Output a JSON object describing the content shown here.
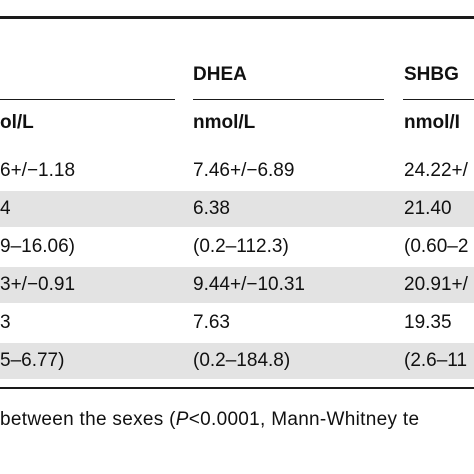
{
  "table": {
    "groups": [
      {
        "id": "c1",
        "label": ""
      },
      {
        "id": "c2",
        "label": "DHEA"
      },
      {
        "id": "c3",
        "label": "SHBG"
      }
    ],
    "units": [
      "ol/L",
      "nmol/L",
      "nmol/I"
    ],
    "rows": [
      {
        "cells": [
          "6+/−1.18",
          "7.46+/−6.89",
          "24.22+/"
        ],
        "shaded": false
      },
      {
        "cells": [
          "4",
          "6.38",
          "21.40"
        ],
        "shaded": true
      },
      {
        "cells": [
          "9–16.06)",
          "(0.2–112.3)",
          "(0.60–2"
        ],
        "shaded": false
      },
      {
        "cells": [
          "3+/−0.91",
          "9.44+/−10.31",
          "20.91+/"
        ],
        "shaded": true
      },
      {
        "cells": [
          "3",
          "7.63",
          "19.35"
        ],
        "shaded": false
      },
      {
        "cells": [
          "5–6.77)",
          "(0.2–184.8)",
          "(2.6–11"
        ],
        "shaded": true
      }
    ]
  },
  "footnote": {
    "before": "between the sexes (",
    "italic": "P",
    "after": "<0.0001, Mann-Whitney te"
  }
}
